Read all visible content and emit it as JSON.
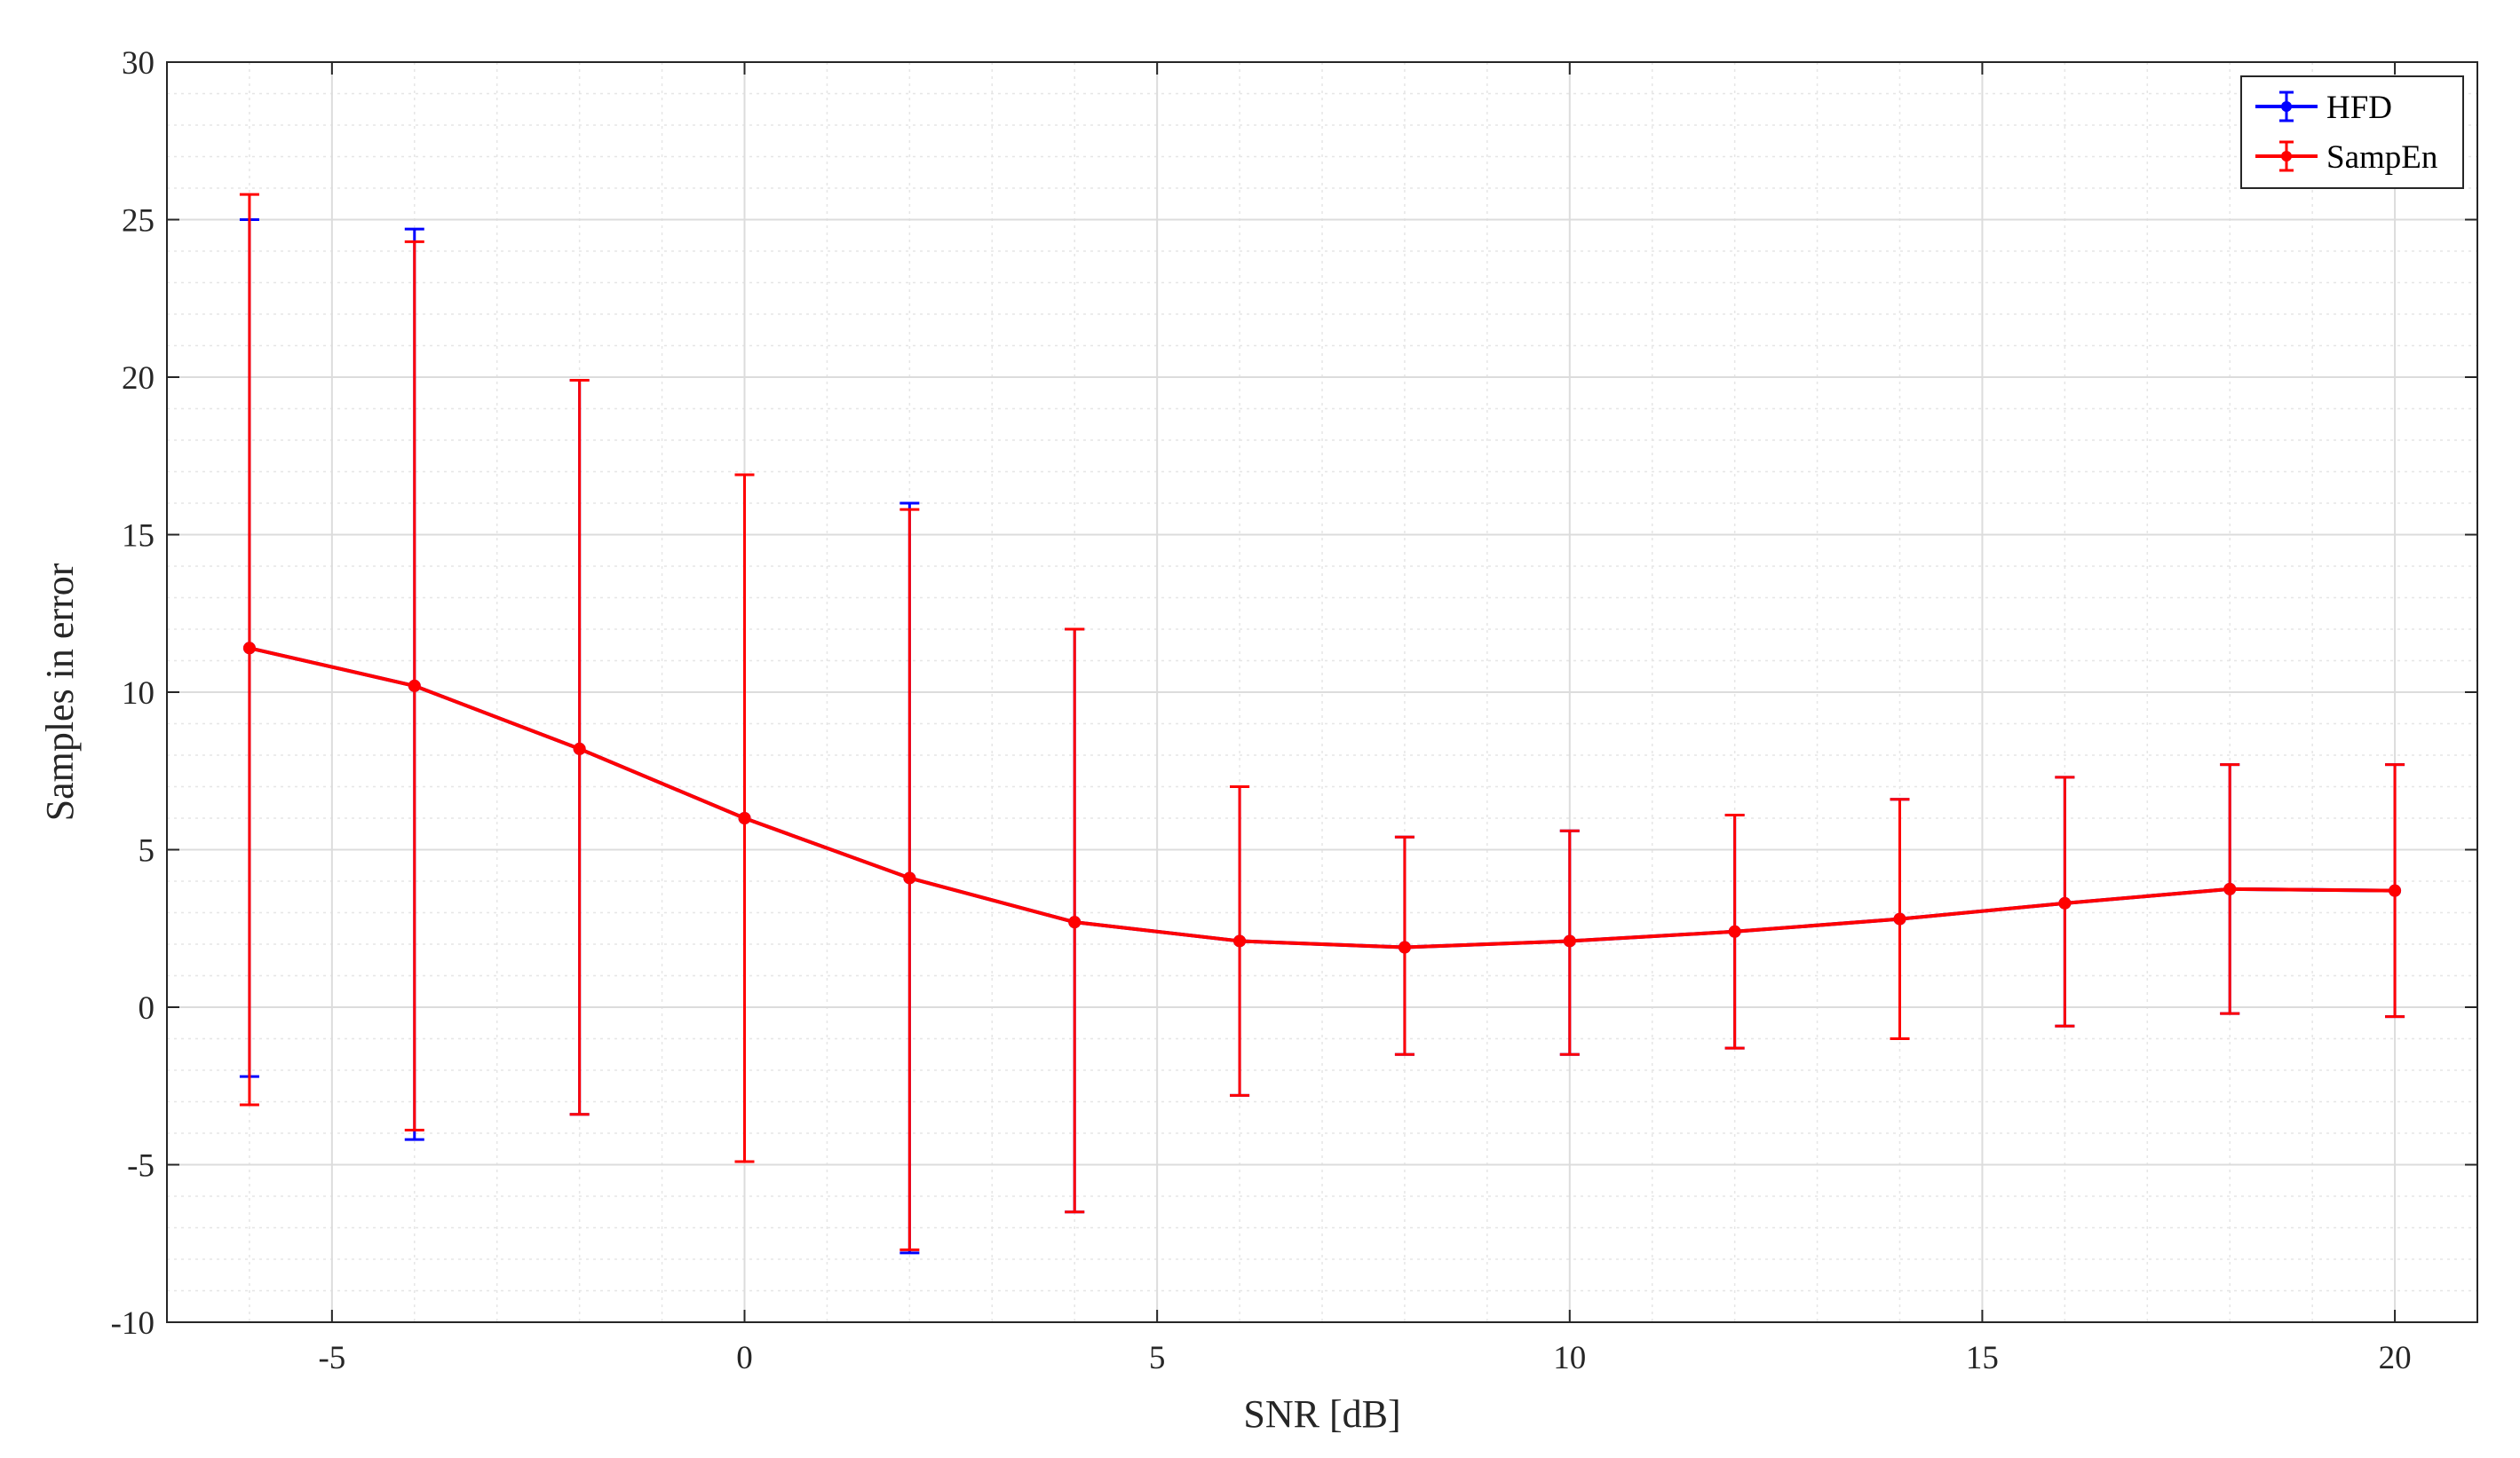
{
  "chart_data": {
    "type": "line",
    "title": "",
    "xlabel": "SNR [dB]",
    "ylabel": "Samples in error",
    "xlim": [
      -7,
      21
    ],
    "ylim": [
      -10,
      30
    ],
    "xticks": [
      -5,
      0,
      5,
      10,
      15,
      20
    ],
    "yticks": [
      -10,
      -5,
      0,
      5,
      10,
      15,
      20,
      25,
      30
    ],
    "grid": true,
    "minor_grid": true,
    "legend_position": "top-right",
    "x": [
      -6,
      -4,
      -2,
      0,
      2,
      4,
      6,
      8,
      10,
      12,
      14,
      16,
      18,
      20
    ],
    "series": [
      {
        "name": "HFD",
        "color": "#0000ff",
        "y": [
          11.4,
          10.2,
          8.2,
          6.0,
          4.1,
          2.7,
          2.1,
          1.9,
          2.1,
          2.4,
          2.8,
          3.3,
          3.75,
          3.7
        ],
        "err_low": [
          -2.2,
          -4.2,
          -3.4,
          -4.9,
          -7.8,
          -6.5,
          -2.8,
          -1.5,
          -1.5,
          -1.3,
          -1.0,
          -0.6,
          -0.2,
          -0.3
        ],
        "err_high": [
          25.0,
          24.7,
          19.9,
          16.9,
          16.0,
          12.0,
          7.0,
          5.4,
          5.6,
          6.1,
          6.6,
          7.3,
          7.7,
          7.7
        ]
      },
      {
        "name": "SampEn",
        "color": "#ff0000",
        "y": [
          11.4,
          10.2,
          8.2,
          6.0,
          4.1,
          2.7,
          2.1,
          1.9,
          2.1,
          2.4,
          2.8,
          3.3,
          3.75,
          3.7
        ],
        "err_low": [
          -3.1,
          -3.9,
          -3.4,
          -4.9,
          -7.7,
          -6.5,
          -2.8,
          -1.5,
          -1.5,
          -1.3,
          -1.0,
          -0.6,
          -0.2,
          -0.3
        ],
        "err_high": [
          25.8,
          24.3,
          19.9,
          16.9,
          15.8,
          12.0,
          7.0,
          5.4,
          5.6,
          6.1,
          6.6,
          7.3,
          7.7,
          7.7
        ]
      }
    ]
  }
}
